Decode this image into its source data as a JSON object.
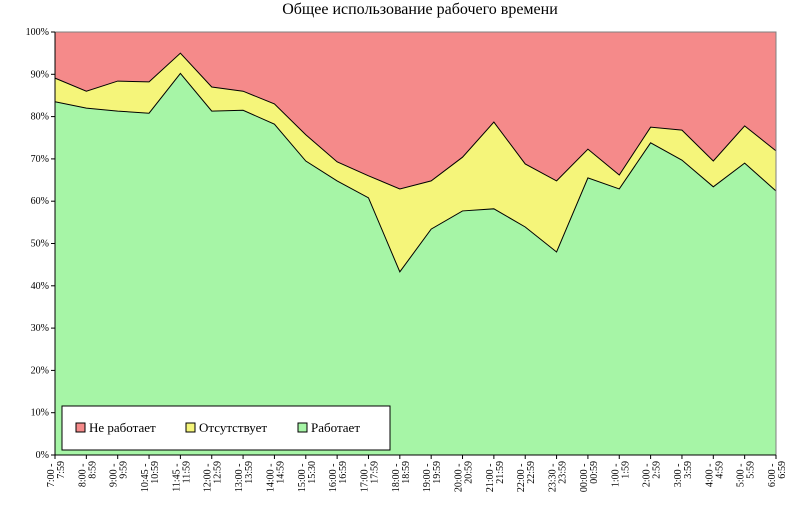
{
  "chart_data": {
    "type": "stacked-area-100",
    "title": "Общее использование рабочего времени",
    "categories": [
      "7:00 - 7:59",
      "8:00 - 8:59",
      "9:00 - 9:59",
      "10:45 - 10:59",
      "11:45 - 11:59",
      "12:00 - 12:59",
      "13:00 - 13:59",
      "14:00 - 14:59",
      "15:00 - 15:30",
      "16:00 - 16:59",
      "17:00 - 17:59",
      "18:00 - 18:59",
      "19:00 - 19:59",
      "20:00 - 20:59",
      "21:00 - 21:59",
      "22:00 - 22:59",
      "23:30 - 23:59",
      "00:00 - 00:59",
      "1:00 - 1:59",
      "2:00 - 2:59",
      "3:00 - 3:59",
      "4:00 - 4:59",
      "5:00 - 5:59",
      "6:00 - 6:59"
    ],
    "series": [
      {
        "name": "Работает",
        "color": "#a6f5a6",
        "values": [
          83.5,
          82,
          81.3,
          80.8,
          90.2,
          81.3,
          81.5,
          78.2,
          69.5,
          64.8,
          60.8,
          43.3,
          53.4,
          57.7,
          58.2,
          53.9,
          48,
          65.5,
          62.9,
          73.8,
          69.7,
          63.4,
          69,
          62.4
        ]
      },
      {
        "name": "Отсутствует",
        "color": "#f5f57a",
        "values": [
          5.6,
          4,
          7.1,
          7.4,
          4.8,
          5.7,
          4.5,
          4.8,
          6.2,
          4.5,
          5.2,
          19.6,
          11.4,
          12.7,
          20.5,
          14.9,
          16.8,
          6.8,
          3.3,
          3.7,
          7.1,
          6.1,
          8.8,
          9.5
        ]
      },
      {
        "name": "Не работает",
        "color": "#f58a8a",
        "values": [
          10.9,
          14,
          11.6,
          11.8,
          5,
          13,
          14,
          17,
          24.3,
          30.7,
          34,
          37.1,
          35.2,
          29.6,
          21.3,
          31.2,
          35.2,
          27.7,
          33.8,
          22.5,
          23.2,
          30.5,
          22.2,
          28.1
        ]
      }
    ],
    "ylim": [
      0,
      100
    ],
    "yticks": [
      {
        "value": 0,
        "label": "0%"
      },
      {
        "value": 10,
        "label": "10%"
      },
      {
        "value": 20,
        "label": "20%"
      },
      {
        "value": 30,
        "label": "30%"
      },
      {
        "value": 40,
        "label": "40%"
      },
      {
        "value": 50,
        "label": "50%"
      },
      {
        "value": 60,
        "label": "60%"
      },
      {
        "value": 70,
        "label": "70%"
      },
      {
        "value": 80,
        "label": "80%"
      },
      {
        "value": 90,
        "label": "90%"
      },
      {
        "value": 100,
        "label": "100%"
      }
    ],
    "legend": "lower-left"
  }
}
